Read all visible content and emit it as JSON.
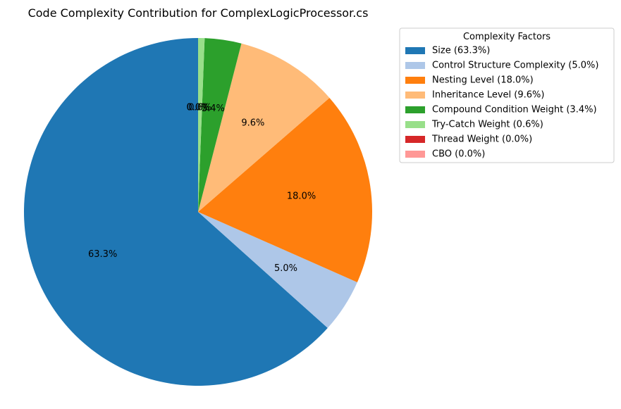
{
  "chart_data": {
    "type": "pie",
    "title": "Code Complexity Contribution for ComplexLogicProcessor.cs",
    "start_angle_deg": 90,
    "direction": "counterclockwise",
    "legend": {
      "title": "Complexity Factors",
      "placement": "upper-right, outside plot"
    },
    "slices": [
      {
        "label": "Size",
        "value": 63.3,
        "pct_label": "63.3%",
        "legend": "Size (63.3%)",
        "color": "#1f77b4"
      },
      {
        "label": "Control Structure Complexity",
        "value": 5.0,
        "pct_label": "5.0%",
        "legend": "Control Structure Complexity (5.0%)",
        "color": "#aec7e8"
      },
      {
        "label": "Nesting Level",
        "value": 18.0,
        "pct_label": "18.0%",
        "legend": "Nesting Level (18.0%)",
        "color": "#ff7f0e"
      },
      {
        "label": "Inheritance Level",
        "value": 9.6,
        "pct_label": "9.6%",
        "legend": "Inheritance Level (9.6%)",
        "color": "#ffbb78"
      },
      {
        "label": "Compound Condition Weight",
        "value": 3.4,
        "pct_label": "3.4%",
        "legend": "Compound Condition Weight (3.4%)",
        "color": "#2ca02c"
      },
      {
        "label": "Try-Catch Weight",
        "value": 0.6,
        "pct_label": "0.6%",
        "legend": "Try-Catch Weight (0.6%)",
        "color": "#98df8a"
      },
      {
        "label": "Thread Weight",
        "value": 0.0,
        "pct_label": "0.0%",
        "legend": "Thread Weight (0.0%)",
        "color": "#d62728"
      },
      {
        "label": "CBO",
        "value": 0.0,
        "pct_label": "0.0%",
        "legend": "CBO (0.0%)",
        "color": "#ff9896"
      }
    ]
  }
}
